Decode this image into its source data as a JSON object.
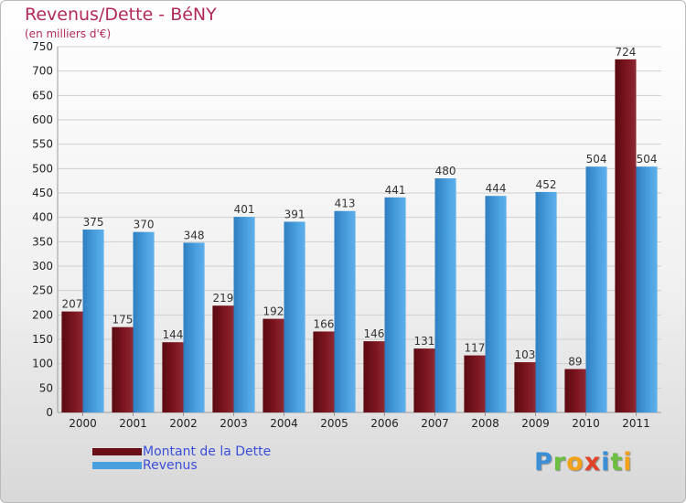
{
  "title": "Revenus/Dette - BéNY",
  "subtitle": "(en milliers d'€)",
  "logo": {
    "text": "Proxiti",
    "letters": [
      {
        "ch": "P",
        "color": "#3a8fd6"
      },
      {
        "ch": "r",
        "color": "#6cbf3f"
      },
      {
        "ch": "o",
        "color": "#f2a21a"
      },
      {
        "ch": "x",
        "color": "#e0432a"
      },
      {
        "ch": "i",
        "color": "#3a8fd6"
      },
      {
        "ch": "t",
        "color": "#6cbf3f"
      },
      {
        "ch": "i",
        "color": "#f2a21a"
      }
    ]
  },
  "colors": {
    "dette": "#8a1a24",
    "revenus": "#4aa0df",
    "grid": "#cfcfcf",
    "axis_text": "#222222"
  },
  "legend": [
    {
      "label": "Montant de la Dette",
      "color": "#6a0f17"
    },
    {
      "label": "Revenus",
      "color": "#4aa0df"
    }
  ],
  "chart_data": {
    "type": "bar",
    "categories": [
      "2000",
      "2001",
      "2002",
      "2003",
      "2004",
      "2005",
      "2006",
      "2007",
      "2008",
      "2009",
      "2010",
      "2011"
    ],
    "series": [
      {
        "name": "Montant de la Dette",
        "values": [
          207,
          175,
          144,
          219,
          192,
          166,
          146,
          131,
          117,
          103,
          89,
          724
        ]
      },
      {
        "name": "Revenus",
        "values": [
          375,
          370,
          348,
          401,
          391,
          413,
          441,
          480,
          444,
          452,
          504,
          504
        ]
      }
    ],
    "ylim": [
      0,
      750
    ],
    "yticks": [
      0,
      50,
      100,
      150,
      200,
      250,
      300,
      350,
      400,
      450,
      500,
      550,
      600,
      650,
      700,
      750
    ],
    "grid": true,
    "legend_position": "bottom-left"
  }
}
